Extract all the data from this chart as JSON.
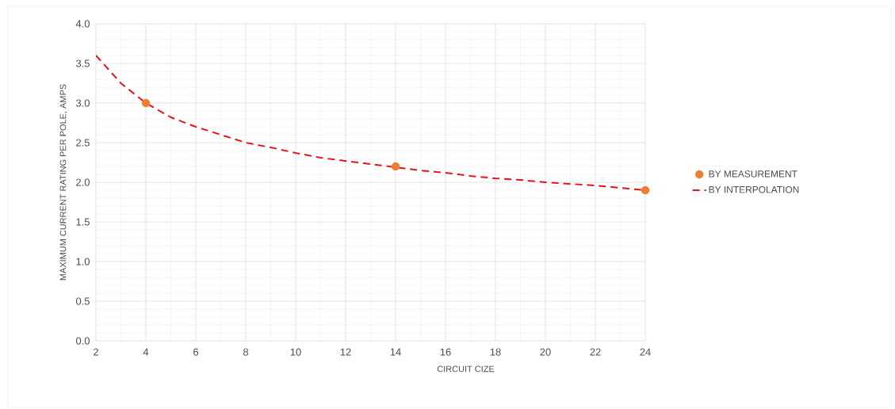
{
  "chart_data": {
    "type": "scatter",
    "xlabel": "CIRCUIT CIZE",
    "ylabel": "MAXIMUM CURRENT RATING PER POLE, AMPS",
    "xlim": [
      2,
      24
    ],
    "xticks": [
      2,
      4,
      6,
      8,
      10,
      12,
      14,
      16,
      18,
      20,
      22,
      24
    ],
    "ylim": [
      0,
      4
    ],
    "yticks": [
      {
        "value": 0,
        "label": "0.0"
      },
      {
        "value": 0.5,
        "label": "0.5"
      },
      {
        "value": 1,
        "label": "1.0"
      },
      {
        "value": 1.5,
        "label": "1.5"
      },
      {
        "value": 2,
        "label": "2.0"
      },
      {
        "value": 2.5,
        "label": "2.5"
      },
      {
        "value": 3,
        "label": "3.0"
      },
      {
        "value": 3.5,
        "label": "3.5"
      },
      {
        "value": 4,
        "label": "4.0"
      }
    ],
    "grid": true,
    "legend": "right",
    "series": [
      {
        "name": "BY MEASUREMENT",
        "marker": "circle",
        "color": "#ed7d31",
        "x": [
          4,
          14,
          24
        ],
        "values": [
          3.0,
          2.2,
          1.9
        ]
      },
      {
        "name": "BY INTERPOLATION",
        "type": "line",
        "line_style": "dashed",
        "marker": "none",
        "color": "#e8101c",
        "x": [
          2,
          3,
          4,
          5,
          6,
          7,
          8,
          9,
          10,
          11,
          12,
          13,
          14,
          15,
          16,
          17,
          18,
          19,
          20,
          21,
          22,
          23,
          24
        ],
        "values": [
          3.6,
          3.25,
          3.0,
          2.82,
          2.7,
          2.6,
          2.5,
          2.44,
          2.37,
          2.31,
          2.27,
          2.23,
          2.19,
          2.15,
          2.12,
          2.08,
          2.05,
          2.03,
          2.0,
          1.98,
          1.96,
          1.93,
          1.9
        ]
      }
    ]
  }
}
